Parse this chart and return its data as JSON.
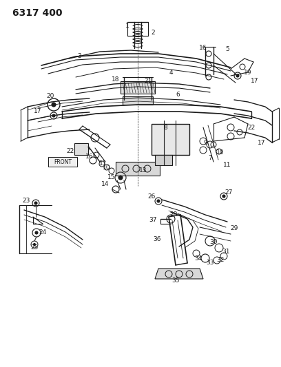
{
  "title": "6317 400",
  "bg_color": "#ffffff",
  "line_color": "#1a1a1a",
  "title_fontsize": 10,
  "label_fontsize": 6.5,
  "figsize": [
    4.08,
    5.33
  ],
  "dpi": 100
}
